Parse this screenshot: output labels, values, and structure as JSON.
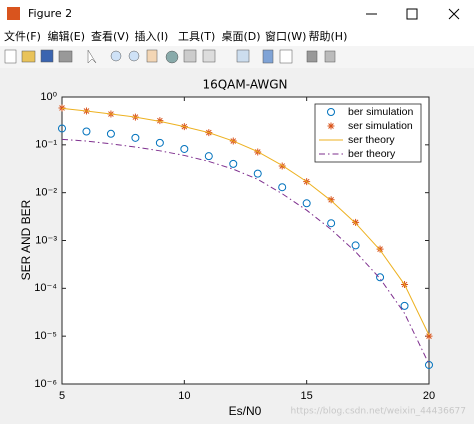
{
  "window": {
    "title": "Figure 2",
    "menus": [
      "文件(F)",
      "编辑(E)",
      "查看(V)",
      "插入(I)",
      "工具(T)",
      "桌面(D)",
      "窗口(W)",
      "帮助(H)"
    ]
  },
  "watermark": "https://blog.csdn.net/weixin_44436677",
  "chart_data": {
    "type": "line",
    "title": "16QAM-AWGN",
    "x_label": "Es/N0",
    "y_label": "SER AND BER",
    "x": [
      5,
      6,
      7,
      8,
      9,
      10,
      11,
      12,
      13,
      14,
      15,
      16,
      17,
      18,
      19,
      20
    ],
    "series": [
      {
        "name": "ber simulation",
        "color": "#0072bd",
        "marker": "circle",
        "line": "none",
        "values": [
          0.22,
          0.19,
          0.17,
          0.14,
          0.11,
          0.082,
          0.058,
          0.04,
          0.025,
          0.013,
          0.006,
          0.0023,
          0.00079,
          0.00017,
          4.3e-05,
          2.5e-06
        ]
      },
      {
        "name": "ser simulation",
        "color": "#d95319",
        "marker": "asterisk",
        "line": "none",
        "values": [
          0.59,
          0.51,
          0.44,
          0.38,
          0.32,
          0.24,
          0.18,
          0.12,
          0.071,
          0.036,
          0.017,
          0.0071,
          0.0024,
          0.00066,
          0.00012,
          1e-05
        ]
      },
      {
        "name": "ser theory",
        "color": "#edb120",
        "marker": "none",
        "line": "solid",
        "values": [
          0.58,
          0.51,
          0.44,
          0.38,
          0.31,
          0.24,
          0.18,
          0.12,
          0.072,
          0.037,
          0.017,
          0.0068,
          0.0023,
          0.00063,
          0.00012,
          1.05e-05
        ]
      },
      {
        "name": "ber theory",
        "color": "#7e2f8e",
        "marker": "none",
        "line": "dashdot",
        "values": [
          0.13,
          0.12,
          0.105,
          0.09,
          0.075,
          0.06,
          0.045,
          0.031,
          0.019,
          0.0095,
          0.0043,
          0.0017,
          0.00058,
          0.00016,
          3e-05,
          2.6e-06
        ]
      }
    ],
    "xlim": [
      5,
      20
    ],
    "xticks": [
      5,
      10,
      15,
      20
    ],
    "ylim": [
      1e-06,
      1
    ],
    "log_y": true,
    "yticks": [
      {
        "value": 1e-06,
        "label": "10⁻⁶"
      },
      {
        "value": 1e-05,
        "label": "10⁻⁵"
      },
      {
        "value": 0.0001,
        "label": "10⁻⁴"
      },
      {
        "value": 0.001,
        "label": "10⁻³"
      },
      {
        "value": 0.01,
        "label": "10⁻²"
      },
      {
        "value": 0.1,
        "label": "10⁻¹"
      },
      {
        "value": 1,
        "label": "10⁰"
      }
    ],
    "legend": "top-right",
    "grid": false
  }
}
